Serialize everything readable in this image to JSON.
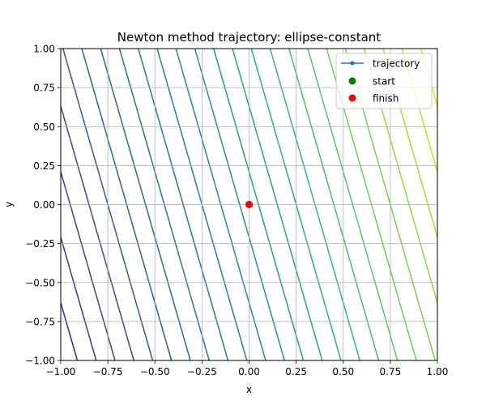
{
  "chart_data": {
    "type": "line",
    "title": "Newton method trajectory: ellipse-constant",
    "xlabel": "x",
    "ylabel": "y",
    "xlim": [
      -1.0,
      1.0
    ],
    "ylim": [
      -1.0,
      1.0
    ],
    "xticks": [
      -1.0,
      -0.75,
      -0.5,
      -0.25,
      0.0,
      0.25,
      0.5,
      0.75,
      1.0
    ],
    "yticks": [
      -1.0,
      -0.75,
      -0.5,
      -0.25,
      0.0,
      0.25,
      0.5,
      0.75,
      1.0
    ],
    "xtick_labels": [
      "−1.00",
      "−0.75",
      "−0.50",
      "−0.25",
      "0.00",
      "0.25",
      "0.50",
      "0.75",
      "1.00"
    ],
    "ytick_labels": [
      "−1.00",
      "−0.75",
      "−0.50",
      "−0.25",
      "0.00",
      "0.25",
      "0.50",
      "0.75",
      "1.00"
    ],
    "grid": true,
    "legend_position": "top-right",
    "background_contours": {
      "kind": "linear contour lines, viridis colormap",
      "slope_dy_dx": -4.2,
      "levels_x_intercept": [
        -1.35,
        -1.25,
        -1.15,
        -1.05,
        -0.95,
        -0.85,
        -0.75,
        -0.65,
        -0.55,
        -0.45,
        -0.35,
        -0.25,
        -0.15,
        -0.05,
        0.05,
        0.15,
        0.25,
        0.35,
        0.45,
        0.55,
        0.65,
        0.75,
        0.85,
        0.95,
        1.05,
        1.15
      ],
      "colors": [
        "#440154",
        "#471365",
        "#482374",
        "#463480",
        "#424086",
        "#3e4989",
        "#39568c",
        "#355f8d",
        "#31688e",
        "#2d708e",
        "#29798e",
        "#26828e",
        "#228b8d",
        "#1f958b",
        "#1f9e89",
        "#22a785",
        "#2ab07f",
        "#35b779",
        "#44bf70",
        "#56c667",
        "#6ccd5a",
        "#7ad151",
        "#95d840",
        "#addc30",
        "#c8e020",
        "#dde318"
      ]
    },
    "series": [
      {
        "name": "trajectory",
        "x": [
          0.0,
          0.0
        ],
        "y": [
          0.0,
          0.0
        ],
        "color": "#1f77b4",
        "marker": "o"
      },
      {
        "name": "start",
        "x": [
          0.0
        ],
        "y": [
          0.0
        ],
        "color": "#008000",
        "marker": "o"
      },
      {
        "name": "finish",
        "x": [
          0.0
        ],
        "y": [
          0.0
        ],
        "color": "#ff0000",
        "marker": "o"
      }
    ]
  }
}
